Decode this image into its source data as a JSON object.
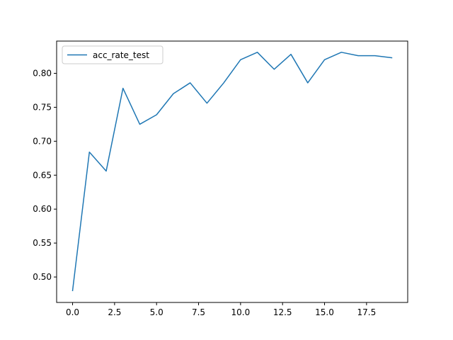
{
  "chart_data": {
    "type": "line",
    "title": "",
    "xlabel": "",
    "ylabel": "",
    "xlim": [
      -0.95,
      19.95
    ],
    "ylim": [
      0.4625,
      0.8475
    ],
    "x_ticks": [
      0.0,
      2.5,
      5.0,
      7.5,
      10.0,
      12.5,
      15.0,
      17.5
    ],
    "x_tick_labels": [
      "0.0",
      "2.5",
      "5.0",
      "7.5",
      "10.0",
      "12.5",
      "15.0",
      "17.5"
    ],
    "y_ticks": [
      0.5,
      0.55,
      0.6,
      0.65,
      0.7,
      0.75,
      0.8
    ],
    "y_tick_labels": [
      "0.50",
      "0.55",
      "0.60",
      "0.65",
      "0.70",
      "0.75",
      "0.80"
    ],
    "grid": false,
    "legend_position": "upper-left",
    "series": [
      {
        "name": "acc_rate_test",
        "color": "#1f77b4",
        "x": [
          0,
          1,
          2,
          3,
          4,
          5,
          6,
          7,
          8,
          9,
          10,
          11,
          12,
          13,
          14,
          15,
          16,
          17,
          18,
          19
        ],
        "y": [
          0.48,
          0.684,
          0.656,
          0.778,
          0.725,
          0.739,
          0.77,
          0.786,
          0.756,
          0.786,
          0.82,
          0.831,
          0.806,
          0.828,
          0.786,
          0.82,
          0.831,
          0.826,
          0.826,
          0.823
        ]
      }
    ]
  }
}
